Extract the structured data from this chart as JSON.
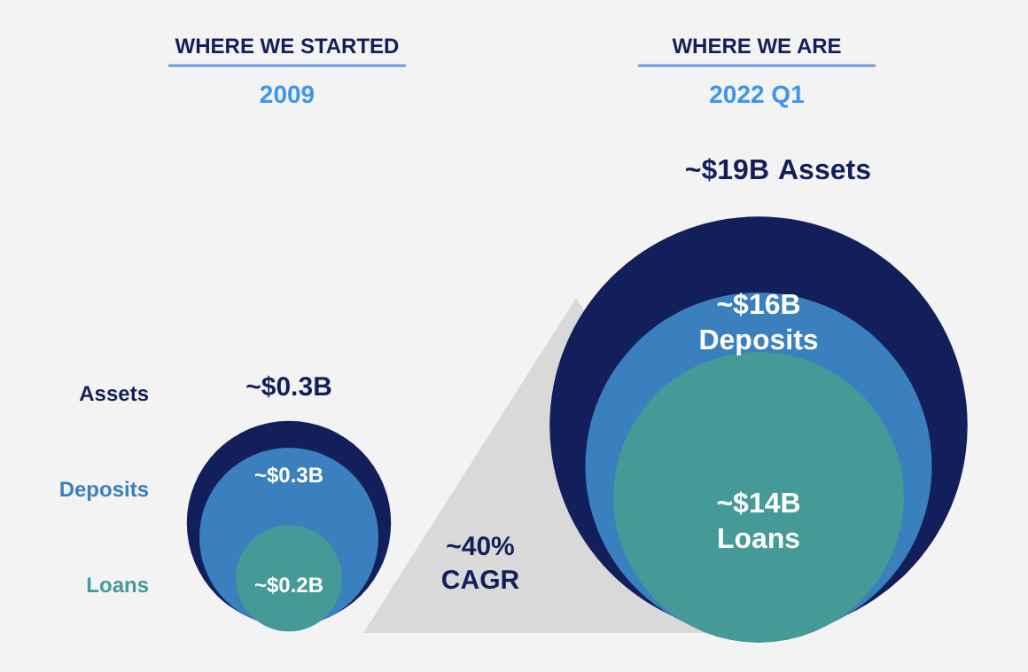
{
  "chart_data": {
    "type": "other",
    "categories": [
      "2009",
      "2022 Q1"
    ],
    "series": [
      {
        "name": "Assets",
        "color": "#121f5a",
        "values": [
          0.3,
          19
        ],
        "value_labels": [
          "~$0.3B",
          "~$19B"
        ]
      },
      {
        "name": "Deposits",
        "color": "#3a80be",
        "values": [
          0.3,
          16
        ],
        "value_labels": [
          "~$0.3B",
          "~$16B"
        ]
      },
      {
        "name": "Loans",
        "color": "#459a98",
        "values": [
          0.2,
          14
        ],
        "value_labels": [
          "~$0.2B",
          "~$14B"
        ]
      }
    ],
    "annotations": [
      "WHERE WE STARTED",
      "WHERE WE ARE",
      "~40% CAGR"
    ]
  }
}
